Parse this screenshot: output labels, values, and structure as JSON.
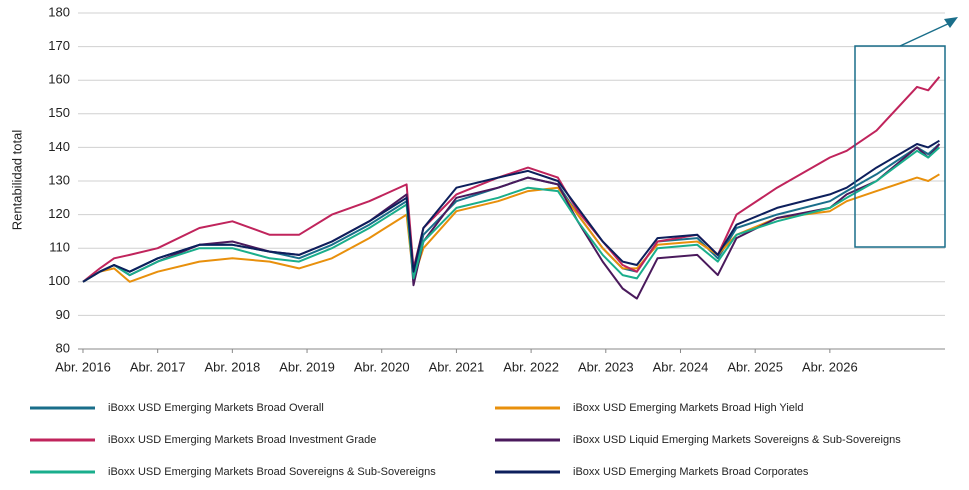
{
  "chart_data": {
    "type": "line",
    "ylabel": "Rentabilidad total",
    "x": [
      0,
      2.7,
      5,
      7.5,
      12,
      18.7,
      24,
      30,
      34.7,
      40,
      46,
      52,
      53.1,
      54.7,
      60,
      66.7,
      71.5,
      76.3,
      79.5,
      83.5,
      86.7,
      89,
      92.3,
      98.7,
      102,
      105,
      111.5,
      120,
      122.7,
      127.5,
      134,
      135.8,
      137.6
    ],
    "series": [
      {
        "name": "iBoxx USD Emerging Markets Broad Overall",
        "color": "#1a6e8a",
        "values": [
          100,
          103,
          105,
          103,
          107,
          111,
          111,
          109,
          107,
          111,
          117,
          124,
          102,
          114,
          124,
          128,
          131,
          129,
          120,
          110,
          104,
          103,
          112,
          113,
          107,
          116,
          120,
          124,
          127,
          132,
          140,
          138,
          141
        ]
      },
      {
        "name": "iBoxx USD Emerging Markets Broad High Yield",
        "color": "#e8900c",
        "values": [
          100,
          103,
          104,
          100,
          103,
          106,
          107,
          106,
          104,
          107,
          113,
          120,
          101,
          110,
          121,
          124,
          127,
          128,
          120,
          110,
          104,
          104,
          111,
          112,
          108,
          114,
          119,
          121,
          124,
          127,
          131,
          130,
          132
        ]
      },
      {
        "name": "iBoxx USD Emerging Markets Broad Investment Grade",
        "color": "#c0245c",
        "values": [
          100,
          104,
          107,
          108,
          110,
          116,
          118,
          114,
          114,
          120,
          124,
          129,
          104,
          116,
          126,
          131,
          134,
          131,
          121,
          112,
          105,
          103,
          112,
          114,
          108,
          120,
          128,
          137,
          139,
          145,
          158,
          157,
          161
        ]
      },
      {
        "name": "iBoxx USD Liquid Emerging Markets Sovereigns & Sub-Sovereigns",
        "color": "#4a1a5c",
        "values": [
          100,
          103,
          105,
          102,
          106,
          111,
          112,
          109,
          108,
          112,
          118,
          126,
          99,
          112,
          125,
          128,
          131,
          129,
          118,
          106,
          98,
          95,
          107,
          108,
          102,
          113,
          119,
          122,
          126,
          130,
          140,
          137,
          141
        ]
      },
      {
        "name": "iBoxx USD Emerging Markets Broad Sovereigns & Sub-Sovereigns",
        "color": "#1aae8c",
        "values": [
          100,
          103,
          105,
          102,
          106,
          110,
          110,
          107,
          106,
          110,
          116,
          123,
          101,
          112,
          122,
          125,
          128,
          127,
          118,
          108,
          102,
          101,
          110,
          111,
          106,
          114,
          118,
          122,
          125,
          130,
          139,
          137,
          140
        ]
      },
      {
        "name": "iBoxx USD Emerging Markets Broad Corporates",
        "color": "#0d1f5c",
        "values": [
          100,
          103,
          105,
          103,
          107,
          111,
          111,
          109,
          108,
          112,
          118,
          125,
          103,
          116,
          128,
          131,
          133,
          130,
          122,
          112,
          106,
          105,
          113,
          114,
          108,
          117,
          122,
          126,
          128,
          134,
          141,
          140,
          142
        ]
      }
    ],
    "xlim": [
      -0.8,
      138.5
    ],
    "xticks": [
      {
        "value": 0,
        "label": "Abr. 2016"
      },
      {
        "value": 12,
        "label": "Abr. 2017"
      },
      {
        "value": 24,
        "label": "Abr. 2018"
      },
      {
        "value": 36,
        "label": "Abr. 2019"
      },
      {
        "value": 48,
        "label": "Abr. 2020"
      },
      {
        "value": 60,
        "label": "Abr. 2021"
      },
      {
        "value": 72,
        "label": "Abr. 2022"
      },
      {
        "value": 84,
        "label": "Abr. 2023"
      },
      {
        "value": 96,
        "label": "Abr. 2024"
      },
      {
        "value": 108,
        "label": "Abr. 2025"
      },
      {
        "value": 120,
        "label": "Abr. 2026"
      }
    ],
    "ylim": [
      80,
      180
    ],
    "yticks": [
      80,
      90,
      100,
      110,
      120,
      130,
      140,
      150,
      160,
      170,
      180
    ],
    "grid": true
  }
}
